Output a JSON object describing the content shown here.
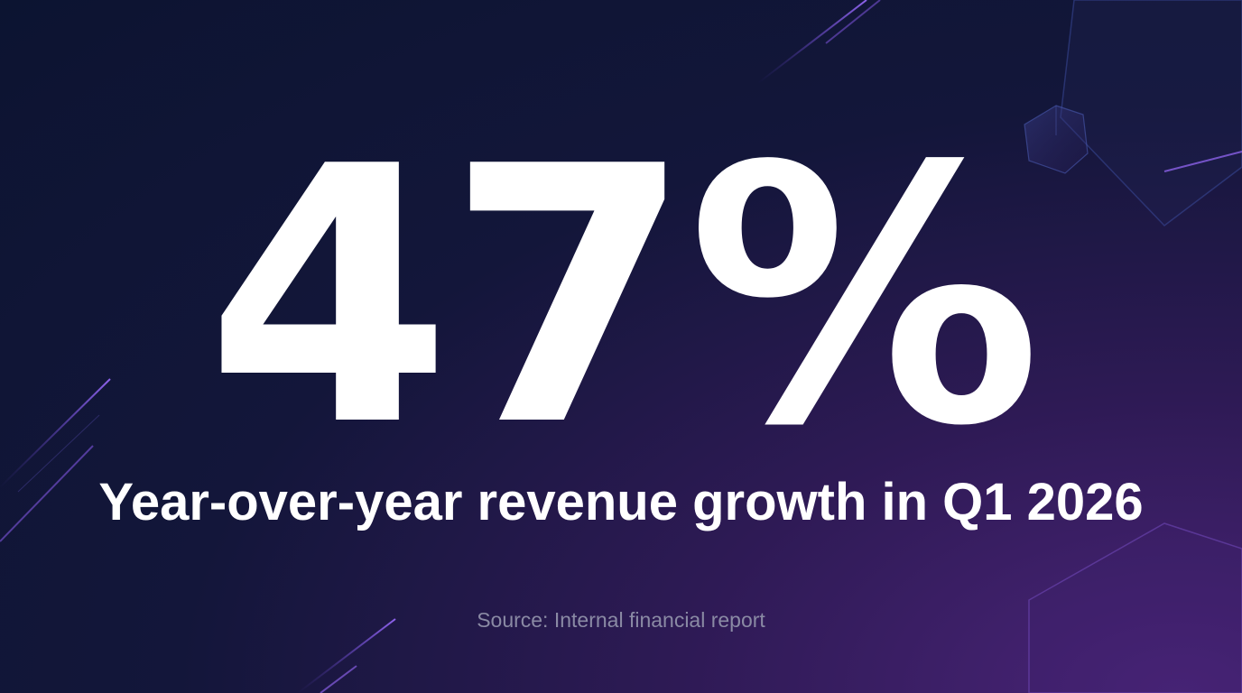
{
  "slide": {
    "value": "47%",
    "caption": "Year-over-year revenue growth in Q1 2026",
    "source": "Source: Internal financial report"
  },
  "colors": {
    "background_dark": "#0c1431",
    "background_purple": "#4a2478",
    "text_primary": "#ffffff",
    "text_muted": "#8a8aa4",
    "accent_line": "#8a5cf0"
  }
}
